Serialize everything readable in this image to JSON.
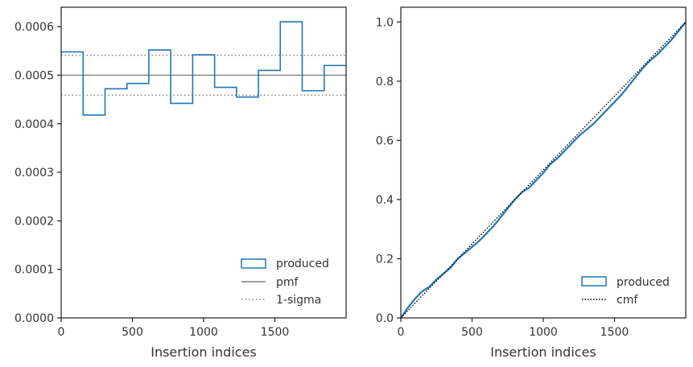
{
  "chart_data": [
    {
      "type": "line",
      "xlabel": "Insertion indices",
      "ylabel": "",
      "xlim": [
        0,
        2000
      ],
      "ylim": [
        0,
        0.00064
      ],
      "xticks": [
        0,
        500,
        1000,
        1500
      ],
      "xtick_labels": [
        "0",
        "500",
        "1000",
        "1500"
      ],
      "yticks": [
        0,
        0.0001,
        0.0002,
        0.0003,
        0.0004,
        0.0005,
        0.0006
      ],
      "ytick_labels": [
        "0.0000",
        "0.0001",
        "0.0002",
        "0.0003",
        "0.0004",
        "0.0005",
        "0.0006"
      ],
      "grid": false,
      "legend_position": "bottom-right",
      "histogram": {
        "name": "produced",
        "color": "#1f77b4",
        "bin_edges": [
          0,
          154,
          308,
          462,
          615,
          769,
          923,
          1077,
          1231,
          1385,
          1538,
          1692,
          1846,
          2000
        ],
        "values": [
          0.000548,
          0.000418,
          0.000472,
          0.000483,
          0.000552,
          0.000442,
          0.000542,
          0.000475,
          0.000455,
          0.00051,
          0.00061,
          0.000468,
          0.00052
        ]
      },
      "pmf": {
        "name": "pmf",
        "value": 0.0005,
        "color": "#808080"
      },
      "sigma": {
        "name": "1-sigma",
        "values": [
          0.000459,
          0.000541
        ],
        "color": "#808080"
      }
    },
    {
      "type": "line",
      "xlabel": "Insertion indices",
      "ylabel": "",
      "xlim": [
        0,
        2000
      ],
      "ylim": [
        0,
        1.05
      ],
      "xticks": [
        0,
        500,
        1000,
        1500
      ],
      "xtick_labels": [
        "0",
        "500",
        "1000",
        "1500"
      ],
      "yticks": [
        0,
        0.2,
        0.4,
        0.6,
        0.8,
        1.0
      ],
      "ytick_labels": [
        "0.0",
        "0.2",
        "0.4",
        "0.6",
        "0.8",
        "1.0"
      ],
      "grid": false,
      "legend_position": "bottom-right",
      "series": [
        {
          "name": "produced",
          "color": "#1f77b4",
          "x": [
            0,
            50,
            100,
            150,
            200,
            250,
            300,
            350,
            400,
            450,
            500,
            550,
            600,
            650,
            700,
            750,
            800,
            850,
            900,
            950,
            1000,
            1050,
            1100,
            1150,
            1200,
            1250,
            1300,
            1350,
            1400,
            1450,
            1500,
            1550,
            1600,
            1650,
            1700,
            1750,
            1800,
            1850,
            1900,
            1950,
            2000
          ],
          "y": [
            0,
            0.035,
            0.065,
            0.09,
            0.105,
            0.13,
            0.15,
            0.17,
            0.2,
            0.22,
            0.24,
            0.26,
            0.285,
            0.31,
            0.34,
            0.37,
            0.4,
            0.425,
            0.44,
            0.465,
            0.49,
            0.52,
            0.54,
            0.565,
            0.59,
            0.615,
            0.635,
            0.655,
            0.68,
            0.705,
            0.73,
            0.755,
            0.785,
            0.815,
            0.845,
            0.87,
            0.89,
            0.915,
            0.94,
            0.97,
            1.0
          ]
        },
        {
          "name": "cmf",
          "color": "#000000",
          "x": [
            0,
            2000
          ],
          "y": [
            0,
            1.0
          ]
        }
      ]
    }
  ]
}
